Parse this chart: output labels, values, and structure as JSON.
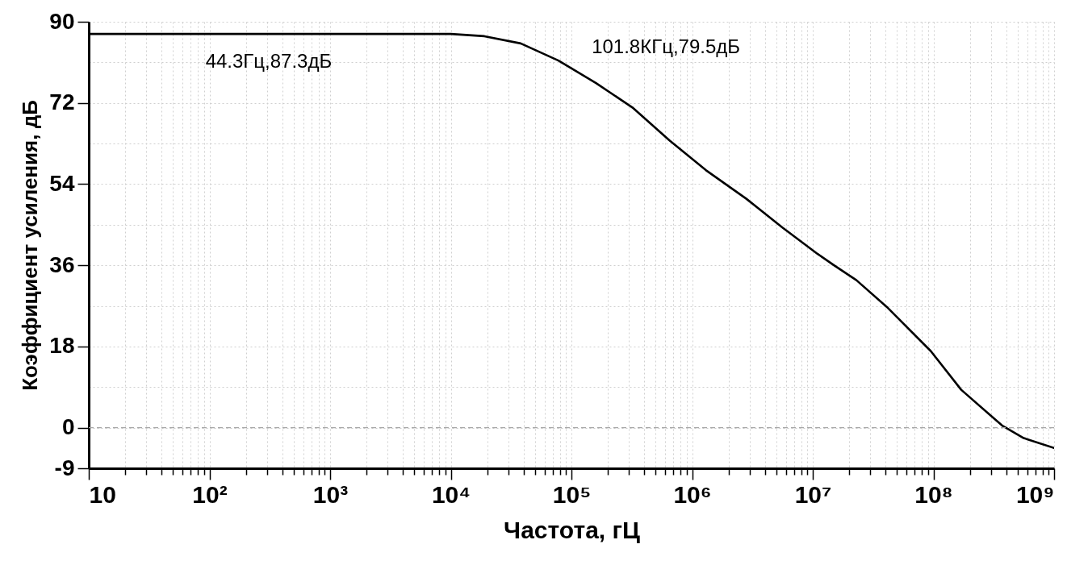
{
  "chart_data": {
    "type": "line",
    "xlabel": "Частота, гЦ",
    "ylabel": "Коэффициент усиления, дБ",
    "log": "x",
    "grid": true,
    "x": [
      10,
      100,
      1000,
      10000,
      19000,
      38000,
      78000,
      160000,
      320000,
      650000,
      1300000,
      2800000,
      5600000,
      11000000,
      15000000,
      23000000,
      41000000,
      95000000,
      170000000,
      370000000,
      560000000,
      1000000000
    ],
    "series": [
      {
        "color": "#000000",
        "values": [
          87.3,
          87.3,
          87.3,
          87.3,
          86.8,
          85.2,
          81.4,
          76.4,
          71.0,
          63.7,
          57.1,
          50.8,
          44.4,
          38.5,
          36.0,
          32.7,
          26.8,
          17.0,
          8.4,
          0.5,
          -2.3,
          -4.5
        ]
      }
    ],
    "xlim": [
      10,
      1000000000
    ],
    "xticks": [
      10,
      {
        "value": 20,
        "label": null
      },
      {
        "value": 30,
        "label": null
      },
      {
        "value": 40,
        "label": null
      },
      {
        "value": 50,
        "label": null
      },
      {
        "value": 60,
        "label": null
      },
      {
        "value": 70,
        "label": null
      },
      {
        "value": 80,
        "label": null
      },
      {
        "value": 90,
        "label": null
      },
      {
        "value": 100,
        "label": "10²"
      },
      {
        "value": 200,
        "label": null
      },
      {
        "value": 300,
        "label": null
      },
      {
        "value": 400,
        "label": null
      },
      {
        "value": 500,
        "label": null
      },
      {
        "value": 600,
        "label": null
      },
      {
        "value": 700,
        "label": null
      },
      {
        "value": 800,
        "label": null
      },
      {
        "value": 900,
        "label": null
      },
      {
        "value": 1000,
        "label": "10³"
      },
      {
        "value": 2000,
        "label": null
      },
      {
        "value": 3000,
        "label": null
      },
      {
        "value": 4000,
        "label": null
      },
      {
        "value": 5000,
        "label": null
      },
      {
        "value": 6000,
        "label": null
      },
      {
        "value": 7000,
        "label": null
      },
      {
        "value": 8000,
        "label": null
      },
      {
        "value": 9000,
        "label": null
      },
      {
        "value": 10000,
        "label": "10⁴"
      },
      {
        "value": 20000,
        "label": null
      },
      {
        "value": 30000,
        "label": null
      },
      {
        "value": 40000,
        "label": null
      },
      {
        "value": 50000,
        "label": null
      },
      {
        "value": 60000,
        "label": null
      },
      {
        "value": 70000,
        "label": null
      },
      {
        "value": 80000,
        "label": null
      },
      {
        "value": 90000,
        "label": null
      },
      {
        "value": 100000,
        "label": "10⁵"
      },
      {
        "value": 200000,
        "label": null
      },
      {
        "value": 300000,
        "label": null
      },
      {
        "value": 400000,
        "label": null
      },
      {
        "value": 500000,
        "label": null
      },
      {
        "value": 600000,
        "label": null
      },
      {
        "value": 700000,
        "label": null
      },
      {
        "value": 800000,
        "label": null
      },
      {
        "value": 900000,
        "label": null
      },
      {
        "value": 1000000,
        "label": "10⁶"
      },
      {
        "value": 2000000,
        "label": null
      },
      {
        "value": 3000000,
        "label": null
      },
      {
        "value": 4000000,
        "label": null
      },
      {
        "value": 5000000,
        "label": null
      },
      {
        "value": 6000000,
        "label": null
      },
      {
        "value": 7000000,
        "label": null
      },
      {
        "value": 8000000,
        "label": null
      },
      {
        "value": 9000000,
        "label": null
      },
      {
        "value": 10000000,
        "label": "10⁷"
      },
      {
        "value": 20000000,
        "label": null
      },
      {
        "value": 30000000,
        "label": null
      },
      {
        "value": 40000000,
        "label": null
      },
      {
        "value": 50000000,
        "label": null
      },
      {
        "value": 60000000,
        "label": null
      },
      {
        "value": 70000000,
        "label": null
      },
      {
        "value": 80000000,
        "label": null
      },
      {
        "value": 90000000,
        "label": null
      },
      {
        "value": 100000000,
        "label": "10⁸"
      },
      {
        "value": 200000000,
        "label": null
      },
      {
        "value": 300000000,
        "label": null
      },
      {
        "value": 400000000,
        "label": null
      },
      {
        "value": 500000000,
        "label": null
      },
      {
        "value": 600000000,
        "label": null
      },
      {
        "value": 700000000,
        "label": null
      },
      {
        "value": 800000000,
        "label": null
      },
      {
        "value": 900000000,
        "label": null
      },
      {
        "value": 1000000000,
        "label": "10⁹"
      }
    ],
    "ylim": [
      -9,
      90
    ],
    "yticks": [
      90,
      {
        "value": 81,
        "label": null
      },
      72,
      {
        "value": 63,
        "label": null
      },
      54,
      {
        "value": 45,
        "label": null
      },
      36,
      {
        "value": 27,
        "label": null
      },
      18,
      {
        "value": 9,
        "label": null
      },
      0,
      -9
    ],
    "ref_lines": [
      {
        "axis": "y",
        "value": 0,
        "color": "#a6a6a6",
        "line_style": "dashed"
      }
    ],
    "annotations": [
      {
        "text": "44.3Гц,87.3дБ",
        "x": 44.3,
        "y": 87.3
      },
      {
        "text": "101.8КГц,79.5дБ",
        "x": 101800,
        "y": 79.5
      }
    ]
  }
}
